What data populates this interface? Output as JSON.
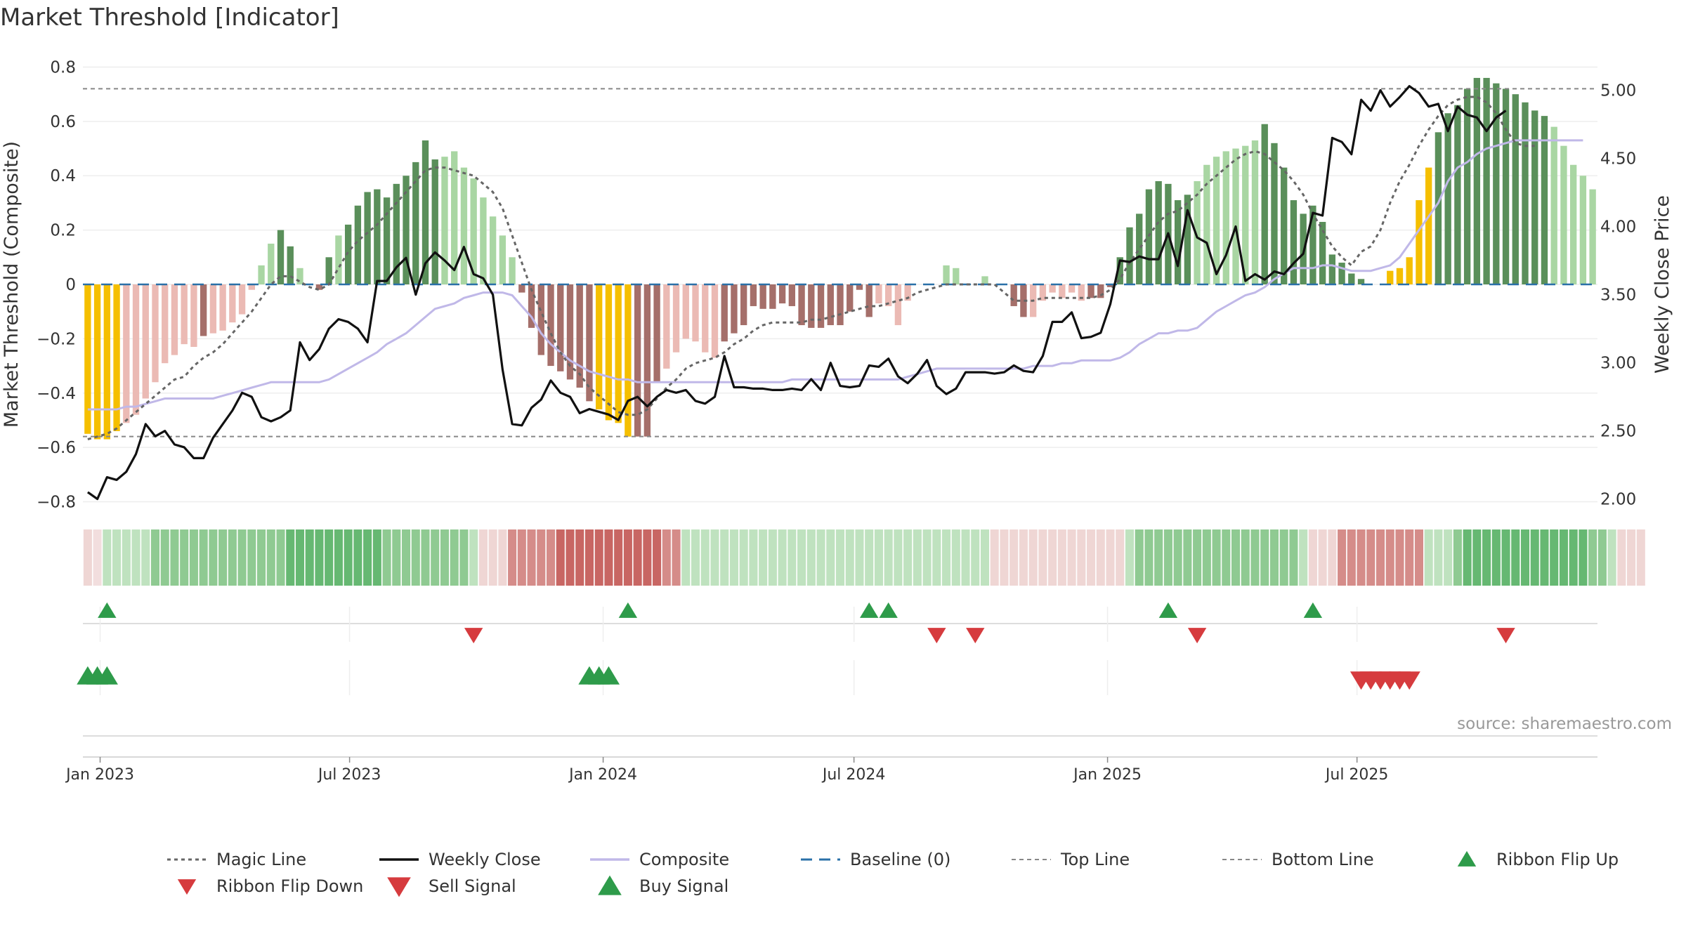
{
  "chart_data": {
    "type": "bar",
    "title": "Market Threshold [Indicator]",
    "ylabel_left": "Market Threshold (Composite)",
    "ylabel_right": "Weekly Close Price",
    "source": "source: sharemaestro.com",
    "left_ylim": [
      -0.84,
      0.84
    ],
    "right_ylim": [
      1.9,
      5.25
    ],
    "left_ticks": [
      "0.8",
      "0.6",
      "0.4",
      "0.2",
      "0",
      "−0.2",
      "−0.4",
      "−0.6",
      "−0.8"
    ],
    "left_tick_values": [
      0.8,
      0.6,
      0.4,
      0.2,
      0,
      -0.2,
      -0.4,
      -0.6,
      -0.8
    ],
    "right_ticks": [
      "5.00",
      "4.50",
      "4.00",
      "3.50",
      "3.00",
      "2.50",
      "2.00"
    ],
    "right_tick_values": [
      5.0,
      4.5,
      4.0,
      3.5,
      3.0,
      2.5,
      2.0
    ],
    "x_ticks": [
      {
        "label": "Jan 2023",
        "date": "2023-01-01"
      },
      {
        "label": "Jul 2023",
        "date": "2023-07-01"
      },
      {
        "label": "Jan 2024",
        "date": "2024-01-01"
      },
      {
        "label": "Jul 2024",
        "date": "2024-07-01"
      },
      {
        "label": "Jan 2025",
        "date": "2025-01-01"
      },
      {
        "label": "Jul 2025",
        "date": "2025-07-01"
      }
    ],
    "start_date": "2022-12-23",
    "top_line": 0.72,
    "bottom_line": -0.56,
    "baseline": 0,
    "colors": {
      "strong_pos": "#5a8f5a",
      "weak_pos": "#a9d6a3",
      "strong_neg": "#a56f6a",
      "weak_neg": "#ebbab4",
      "extreme": "#f5bf00",
      "close": "#111111",
      "composite": "#c0b8e8",
      "magic": "#666666",
      "baseline": "#2a70a8",
      "buy": "#2e9b4a",
      "sell": "#d63b3e"
    },
    "bars": [
      -0.55,
      -0.57,
      -0.57,
      -0.54,
      -0.51,
      -0.48,
      -0.42,
      -0.36,
      -0.29,
      -0.26,
      -0.22,
      -0.23,
      -0.19,
      -0.18,
      -0.17,
      -0.14,
      -0.11,
      -0.02,
      0.07,
      0.15,
      0.2,
      0.14,
      0.06,
      0.0,
      -0.02,
      0.1,
      0.18,
      0.22,
      0.29,
      0.34,
      0.35,
      0.32,
      0.37,
      0.4,
      0.45,
      0.53,
      0.46,
      0.47,
      0.49,
      0.43,
      0.39,
      0.32,
      0.25,
      0.18,
      0.1,
      -0.03,
      -0.16,
      -0.26,
      -0.3,
      -0.32,
      -0.35,
      -0.38,
      -0.43,
      -0.46,
      -0.5,
      -0.51,
      -0.56,
      -0.56,
      -0.56,
      -0.36,
      -0.31,
      -0.25,
      -0.2,
      -0.21,
      -0.25,
      -0.27,
      -0.21,
      -0.18,
      -0.15,
      -0.08,
      -0.09,
      -0.09,
      -0.07,
      -0.08,
      -0.15,
      -0.16,
      -0.16,
      -0.15,
      -0.15,
      -0.1,
      -0.02,
      -0.12,
      -0.07,
      -0.08,
      -0.15,
      -0.06,
      0.0,
      0.0,
      0.0,
      0.07,
      0.06,
      0.0,
      0.0,
      0.03,
      0.0,
      0.0,
      -0.08,
      -0.12,
      -0.12,
      -0.06,
      -0.03,
      -0.05,
      -0.03,
      -0.06,
      -0.05,
      -0.05,
      -0.01,
      0.1,
      0.21,
      0.26,
      0.35,
      0.38,
      0.37,
      0.31,
      0.33,
      0.38,
      0.44,
      0.47,
      0.49,
      0.5,
      0.51,
      0.53,
      0.59,
      0.52,
      0.43,
      0.31,
      0.26,
      0.29,
      0.23,
      0.11,
      0.08,
      0.04,
      0.02,
      0.0,
      0.0,
      0.05,
      0.06,
      0.1,
      0.31,
      0.43,
      0.56,
      0.63,
      0.66,
      0.72,
      0.76,
      0.76,
      0.74,
      0.72,
      0.7,
      0.67,
      0.64,
      0.62,
      0.58,
      0.51,
      0.44,
      0.4,
      0.35
    ],
    "bar_style": "sssswwwwwwwwswwwwwwwsswwsswsssssssssswwwwwwwwssssssssssssssswwwwwwsssssssssssssssswwwwwwwwwwwwwssswwwwwwssssssssssswwwwwwwsssssssssssssswwwssssssssssssswwwwwwwwwwwwww",
    "extreme_ranges": [
      [
        0,
        3
      ],
      [
        53,
        56
      ],
      [
        133,
        139
      ]
    ],
    "close": [
      2.05,
      2.0,
      2.16,
      2.14,
      2.2,
      2.33,
      2.55,
      2.46,
      2.5,
      2.4,
      2.38,
      2.3,
      2.3,
      2.45,
      2.55,
      2.65,
      2.78,
      2.75,
      2.6,
      2.57,
      2.6,
      2.65,
      3.15,
      3.02,
      3.1,
      3.25,
      3.32,
      3.3,
      3.25,
      3.15,
      3.6,
      3.6,
      3.7,
      3.77,
      3.5,
      3.73,
      3.81,
      3.75,
      3.68,
      3.85,
      3.65,
      3.62,
      3.5,
      2.95,
      2.55,
      2.54,
      2.67,
      2.73,
      2.87,
      2.78,
      2.75,
      2.63,
      2.66,
      2.64,
      2.62,
      2.58,
      2.72,
      2.75,
      2.68,
      2.75,
      2.8,
      2.78,
      2.8,
      2.72,
      2.7,
      2.75,
      3.05,
      2.82,
      2.82,
      2.81,
      2.81,
      2.8,
      2.8,
      2.81,
      2.8,
      2.88,
      2.8,
      3.0,
      2.83,
      2.82,
      2.83,
      2.98,
      2.97,
      3.03,
      2.9,
      2.85,
      2.92,
      3.02,
      2.83,
      2.77,
      2.81,
      2.93,
      2.93,
      2.93,
      2.92,
      2.93,
      2.98,
      2.94,
      2.93,
      3.05,
      3.3,
      3.3,
      3.37,
      3.18,
      3.19,
      3.22,
      3.43,
      3.75,
      3.74,
      3.78,
      3.76,
      3.76,
      3.95,
      3.71,
      4.12,
      3.92,
      3.88,
      3.65,
      3.79,
      4.0,
      3.6,
      3.65,
      3.61,
      3.67,
      3.65,
      3.73,
      3.8,
      4.1,
      4.08,
      4.65,
      4.62,
      4.53,
      4.93,
      4.85,
      5.0,
      4.88,
      4.95,
      5.03,
      4.98,
      4.88,
      4.9,
      4.7,
      4.88,
      4.82,
      4.8,
      4.7,
      4.8,
      4.85
    ],
    "composite": [
      -0.46,
      -0.46,
      -0.46,
      -0.46,
      -0.45,
      -0.45,
      -0.44,
      -0.43,
      -0.42,
      -0.42,
      -0.42,
      -0.42,
      -0.42,
      -0.42,
      -0.41,
      -0.4,
      -0.39,
      -0.38,
      -0.37,
      -0.36,
      -0.36,
      -0.36,
      -0.36,
      -0.36,
      -0.36,
      -0.35,
      -0.33,
      -0.31,
      -0.29,
      -0.27,
      -0.25,
      -0.22,
      -0.2,
      -0.18,
      -0.15,
      -0.12,
      -0.09,
      -0.08,
      -0.07,
      -0.05,
      -0.04,
      -0.03,
      -0.03,
      -0.03,
      -0.04,
      -0.08,
      -0.12,
      -0.18,
      -0.22,
      -0.25,
      -0.28,
      -0.3,
      -0.32,
      -0.33,
      -0.34,
      -0.35,
      -0.35,
      -0.36,
      -0.36,
      -0.36,
      -0.36,
      -0.36,
      -0.36,
      -0.36,
      -0.36,
      -0.36,
      -0.36,
      -0.36,
      -0.36,
      -0.36,
      -0.36,
      -0.36,
      -0.36,
      -0.35,
      -0.35,
      -0.35,
      -0.35,
      -0.35,
      -0.35,
      -0.35,
      -0.35,
      -0.35,
      -0.35,
      -0.35,
      -0.35,
      -0.34,
      -0.33,
      -0.32,
      -0.31,
      -0.31,
      -0.31,
      -0.31,
      -0.31,
      -0.31,
      -0.31,
      -0.31,
      -0.31,
      -0.31,
      -0.3,
      -0.3,
      -0.3,
      -0.29,
      -0.29,
      -0.28,
      -0.28,
      -0.28,
      -0.28,
      -0.27,
      -0.25,
      -0.22,
      -0.2,
      -0.18,
      -0.18,
      -0.17,
      -0.17,
      -0.16,
      -0.13,
      -0.1,
      -0.08,
      -0.06,
      -0.04,
      -0.03,
      -0.01,
      0.02,
      0.04,
      0.06,
      0.06,
      0.06,
      0.07,
      0.07,
      0.06,
      0.05,
      0.05,
      0.05,
      0.06,
      0.07,
      0.1,
      0.15,
      0.2,
      0.25,
      0.3,
      0.38,
      0.43,
      0.45,
      0.48,
      0.5,
      0.51,
      0.52,
      0.53,
      0.53,
      0.53,
      0.53,
      0.53,
      0.53,
      0.53,
      0.53
    ],
    "magic": [
      -0.57,
      -0.56,
      -0.55,
      -0.53,
      -0.5,
      -0.47,
      -0.44,
      -0.41,
      -0.38,
      -0.35,
      -0.34,
      -0.3,
      -0.27,
      -0.25,
      -0.22,
      -0.18,
      -0.14,
      -0.1,
      -0.05,
      0.0,
      0.03,
      0.03,
      0.01,
      -0.01,
      -0.02,
      0.0,
      0.06,
      0.12,
      0.16,
      0.19,
      0.22,
      0.26,
      0.3,
      0.34,
      0.38,
      0.42,
      0.43,
      0.43,
      0.42,
      0.41,
      0.4,
      0.37,
      0.34,
      0.28,
      0.18,
      0.08,
      -0.02,
      -0.1,
      -0.18,
      -0.25,
      -0.3,
      -0.33,
      -0.38,
      -0.41,
      -0.44,
      -0.47,
      -0.48,
      -0.48,
      -0.46,
      -0.42,
      -0.38,
      -0.35,
      -0.31,
      -0.29,
      -0.28,
      -0.27,
      -0.25,
      -0.22,
      -0.2,
      -0.17,
      -0.15,
      -0.14,
      -0.14,
      -0.14,
      -0.14,
      -0.13,
      -0.13,
      -0.12,
      -0.11,
      -0.1,
      -0.09,
      -0.08,
      -0.08,
      -0.07,
      -0.06,
      -0.05,
      -0.03,
      -0.02,
      -0.01,
      0.0,
      0.0,
      0.0,
      0.0,
      0.0,
      0.0,
      -0.03,
      -0.06,
      -0.06,
      -0.06,
      -0.05,
      -0.05,
      -0.05,
      -0.05,
      -0.05,
      -0.05,
      -0.04,
      -0.02,
      0.02,
      0.08,
      0.13,
      0.18,
      0.23,
      0.26,
      0.27,
      0.3,
      0.33,
      0.37,
      0.4,
      0.43,
      0.46,
      0.48,
      0.49,
      0.48,
      0.45,
      0.42,
      0.38,
      0.33,
      0.26,
      0.2,
      0.14,
      0.1,
      0.07,
      0.12,
      0.14,
      0.2,
      0.3,
      0.38,
      0.44,
      0.51,
      0.57,
      0.62,
      0.66,
      0.68,
      0.69,
      0.69,
      0.67,
      0.63,
      0.57,
      0.52,
      0.51,
      0.51
    ],
    "ribbon": [
      -1,
      0,
      1,
      1,
      1,
      1,
      1,
      2,
      2,
      2,
      2,
      2,
      2,
      2,
      2,
      2,
      2,
      2,
      2,
      2,
      2,
      3,
      3,
      3,
      3,
      3,
      3,
      3,
      3,
      3,
      3,
      2,
      2,
      2,
      2,
      2,
      2,
      2,
      2,
      2,
      1,
      -1,
      -1,
      -1,
      -2,
      -2,
      -2,
      -2,
      -2,
      -3,
      -3,
      -3,
      -3,
      -3,
      -3,
      -3,
      -3,
      -3,
      -3,
      -3,
      -2,
      -2,
      1,
      1,
      1,
      1,
      1,
      1,
      1,
      1,
      1,
      1,
      1,
      1,
      1,
      1,
      1,
      1,
      1,
      1,
      1,
      1,
      1,
      1,
      1,
      1,
      1,
      1,
      1,
      1,
      1,
      1,
      1,
      1,
      -1,
      -1,
      -1,
      -1,
      -1,
      -1,
      -1,
      -1,
      -1,
      -1,
      -1,
      -1,
      -1,
      -1,
      1,
      2,
      2,
      2,
      2,
      2,
      2,
      2,
      2,
      2,
      2,
      2,
      2,
      2,
      2,
      2,
      2,
      2,
      1,
      -1,
      -1,
      -1,
      -2,
      -2,
      -2,
      -2,
      -2,
      -2,
      -2,
      -2,
      -2,
      1,
      1,
      1,
      2,
      3,
      3,
      3,
      3,
      3,
      3,
      3,
      3,
      3,
      3,
      3,
      3,
      3,
      2,
      2,
      1,
      -1,
      -1,
      -1
    ],
    "ribbon_flip_up": [
      2,
      56,
      81,
      83,
      112,
      127
    ],
    "ribbon_flip_down": [
      40,
      88,
      92,
      115,
      147
    ],
    "buy_signals": [
      0,
      1,
      2,
      52,
      53,
      54
    ],
    "sell_signals": [
      132,
      133,
      134,
      135,
      136,
      137
    ],
    "legend": {
      "row1": [
        "Magic Line",
        "Weekly Close",
        "Composite",
        "Baseline (0)",
        "Top Line",
        "Bottom Line",
        "Ribbon Flip Up"
      ],
      "row2": [
        "Ribbon Flip Down",
        "Sell Signal",
        "Buy Signal"
      ]
    }
  }
}
